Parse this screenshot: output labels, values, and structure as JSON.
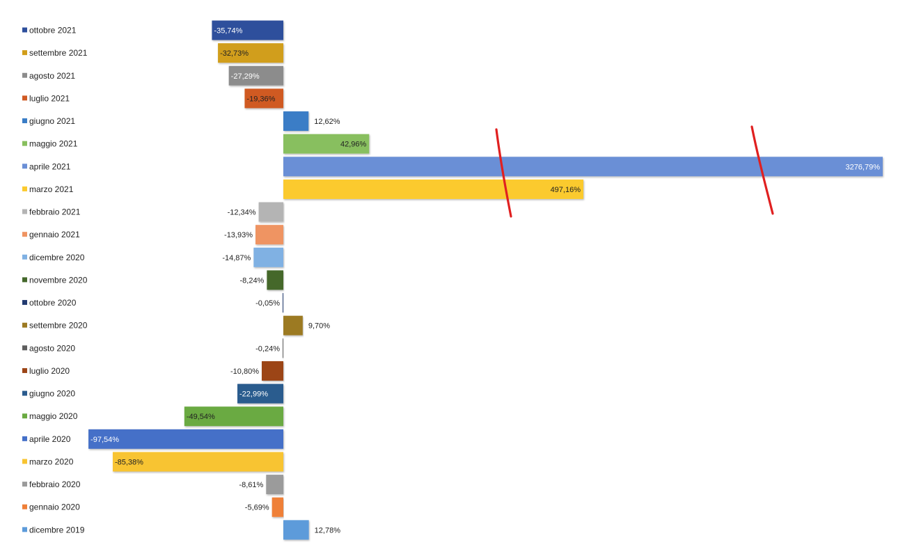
{
  "chart_data": {
    "type": "bar",
    "orientation": "horizontal",
    "title": "",
    "xlabel": "",
    "ylabel": "",
    "grid": false,
    "legend": "inline-left",
    "break_marks": true,
    "categories": [
      "ottobre 2021",
      "settembre 2021",
      "agosto 2021",
      "luglio 2021",
      "giugno 2021",
      "maggio 2021",
      "aprile 2021",
      "marzo 2021",
      "febbraio 2021",
      "gennaio 2021",
      "dicembre 2020",
      "novembre 2020",
      "ottobre 2020",
      "settembre 2020",
      "agosto 2020",
      "luglio 2020",
      "giugno 2020",
      "maggio 2020",
      "aprile 2020",
      "marzo 2020",
      "febbraio 2020",
      "gennaio 2020",
      "dicembre 2019"
    ],
    "values": [
      -35.74,
      -32.73,
      -27.29,
      -19.36,
      12.62,
      42.96,
      3276.79,
      497.16,
      -12.34,
      -13.93,
      -14.87,
      -8.24,
      -0.05,
      9.7,
      -0.24,
      -10.8,
      -22.99,
      -49.54,
      -97.54,
      -85.38,
      -8.61,
      -5.69,
      12.78
    ],
    "labels": [
      "-35,74%",
      "-32,73%",
      "-27,29%",
      "-19,36%",
      "12,62%",
      "42,96%",
      "3276,79%",
      "497,16%",
      "-12,34%",
      "-13,93%",
      "-14,87%",
      "-8,24%",
      "-0,05%",
      "9,70%",
      "-0,24%",
      "-10,80%",
      "-22,99%",
      "-49,54%",
      "-97,54%",
      "-85,38%",
      "-8,61%",
      "-5,69%",
      "12,78%"
    ],
    "colors": [
      "#2e4f9c",
      "#d19e1a",
      "#8c8c8c",
      "#d05a23",
      "#3a7dc6",
      "#88bf5e",
      "#6a8fd6",
      "#fbca2f",
      "#b4b4b4",
      "#ef9462",
      "#80b1e3",
      "#44682b",
      "#223a70",
      "#9c7a22",
      "#5e5e5e",
      "#9c4517",
      "#2a5b8e",
      "#6aaa42",
      "#4470c8",
      "#f8c431",
      "#9b9b9b",
      "#ef8038",
      "#5d9bda"
    ],
    "label_colors": [
      "#ffffff",
      "#222222",
      "#ffffff",
      "#222222",
      "#222222",
      "#222222",
      "#ffffff",
      "#222222",
      "#222222",
      "#222222",
      "#222222",
      "#222222",
      "#222222",
      "#222222",
      "#222222",
      "#222222",
      "#ffffff",
      "#222222",
      "#ffffff",
      "#222222",
      "#222222",
      "#222222",
      "#222222"
    ],
    "label_position": [
      "inside",
      "inside",
      "inside",
      "inside",
      "outside",
      "inside",
      "inside",
      "inside",
      "outside",
      "outside",
      "outside",
      "outside",
      "outside",
      "outside",
      "outside",
      "outside",
      "inside",
      "inside",
      "inside",
      "inside",
      "outside",
      "outside",
      "outside"
    ],
    "break_marks_color": "#e02020"
  }
}
